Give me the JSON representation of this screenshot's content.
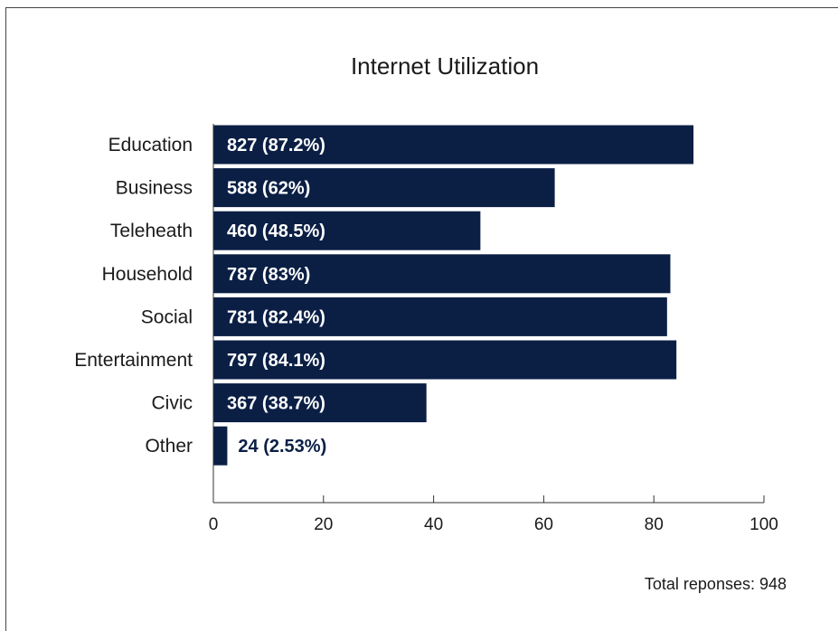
{
  "chart_data": {
    "type": "bar",
    "orientation": "horizontal",
    "title": "Internet Utilization",
    "categories": [
      "Education",
      "Business",
      "Teleheath",
      "Household",
      "Social",
      "Entertainment",
      "Civic",
      "Other"
    ],
    "values": [
      87.2,
      62,
      48.5,
      83,
      82.4,
      84.1,
      38.7,
      2.53
    ],
    "data_labels": [
      "827 (87.2%)",
      "588 (62%)",
      "460 (48.5%)",
      "787 (83%)",
      "781 (82.4%)",
      "797 (84.1%)",
      "367 (38.7%)",
      "24 (2.53%)"
    ],
    "xlim": [
      0,
      100
    ],
    "xticks": [
      0,
      20,
      40,
      60,
      80,
      100
    ],
    "xlabel": "",
    "ylabel": "",
    "grid": false,
    "bar_color": "#0b1f45",
    "label_inside_color": "#ffffff",
    "label_outside_color": "#0b1f45",
    "note": "Total reponses: 948"
  }
}
